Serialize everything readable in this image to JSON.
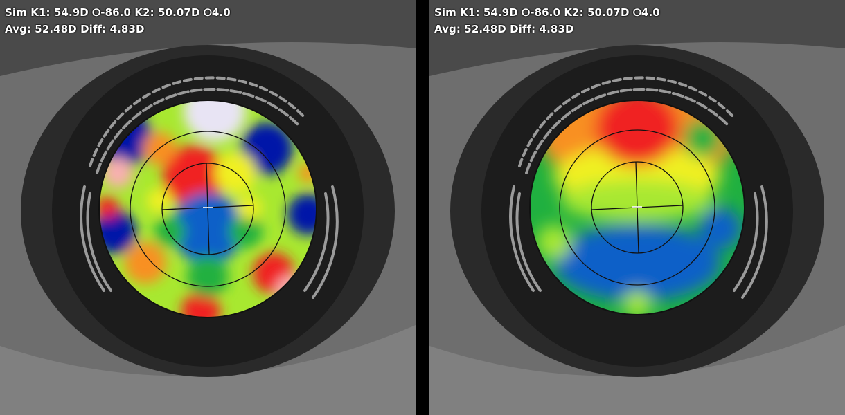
{
  "panels": [
    {
      "id": "left",
      "line1": "Sim K1: 54.9D ⭘-86.0 K2: 50.07D ⭘4.0",
      "line2": "Avg: 52.48D Diff: 4.83D",
      "map_style": "axial-curvature-high-contrast"
    },
    {
      "id": "right",
      "line1": "Sim K1: 54.9D ⭘-86.0 K2: 50.07D ⭘4.0",
      "line2": "Avg: 52.48D Diff: 4.83D",
      "map_style": "smoothed-elevation"
    }
  ],
  "colors": {
    "dark_blue": "#0018a8",
    "blue": "#1060c8",
    "green": "#20b040",
    "yellow_green": "#a8e830",
    "yellow": "#f0f020",
    "orange": "#f89020",
    "red": "#f02020",
    "pink": "#f8b0b0",
    "lavender": "#e8e4f4"
  }
}
